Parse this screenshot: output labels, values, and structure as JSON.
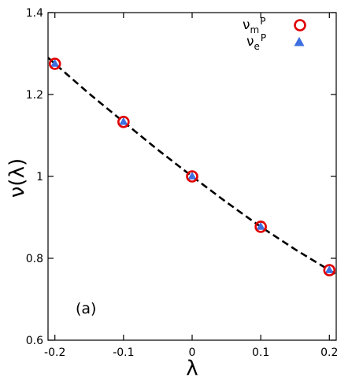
{
  "chart_data": {
    "type": "scatter",
    "title": "",
    "xlabel": "λ",
    "ylabel": "ν(λ)",
    "xlim": [
      -0.21,
      0.21
    ],
    "ylim": [
      0.6,
      1.4
    ],
    "xticks": [
      -0.2,
      -0.1,
      0,
      0.1,
      0.2
    ],
    "xtick_labels": [
      "-0.2",
      "-0.1",
      "0",
      "0.1",
      "0.2"
    ],
    "yticks": [
      0.6,
      0.8,
      1,
      1.2,
      1.4
    ],
    "ytick_labels": [
      "0.6",
      "0.8",
      "1",
      "1.2",
      "1.4"
    ],
    "grid": false,
    "legend_position": "top-right",
    "annotation": "(a)",
    "series": [
      {
        "name": "νmP",
        "name_base": "ν",
        "name_sub": "m",
        "name_sup": "P",
        "marker": "open-circle",
        "color": "#e00000",
        "x": [
          -0.2,
          -0.1,
          0,
          0.1,
          0.2
        ],
        "y": [
          1.275,
          1.133,
          1.0,
          0.877,
          0.771
        ]
      },
      {
        "name": "νeP",
        "name_base": "ν",
        "name_sub": "e",
        "name_sup": "P",
        "marker": "filled-triangle",
        "color": "#3d6fe0",
        "x": [
          -0.2,
          -0.1,
          0,
          0.1,
          0.2
        ],
        "y": [
          1.275,
          1.133,
          1.0,
          0.877,
          0.771
        ]
      },
      {
        "name": "",
        "marker": "none",
        "line": "dashed",
        "color": "#000000",
        "x": [
          -0.21,
          -0.2,
          -0.15,
          -0.1,
          -0.05,
          0,
          0.05,
          0.1,
          0.15,
          0.2,
          0.21
        ],
        "y": [
          1.29,
          1.275,
          1.202,
          1.133,
          1.065,
          1.0,
          0.937,
          0.877,
          0.822,
          0.771,
          0.761
        ]
      }
    ]
  }
}
